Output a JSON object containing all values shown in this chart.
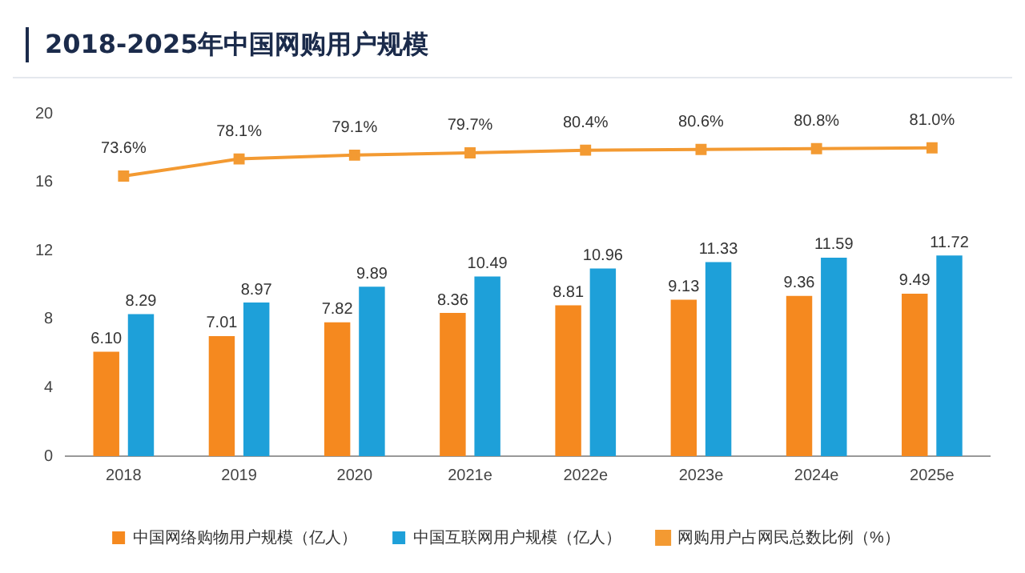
{
  "chart_data": {
    "type": "bar",
    "title": "2018-2025年中国网购用户规模",
    "categories": [
      "2018",
      "2019",
      "2020",
      "2021e",
      "2022e",
      "2023e",
      "2024e",
      "2025e"
    ],
    "series": [
      {
        "name": "中国网络购物用户规模（亿人）",
        "color": "#f5891f",
        "values": [
          6.1,
          7.01,
          7.82,
          8.36,
          8.81,
          9.13,
          9.36,
          9.49
        ],
        "value_labels": [
          "6.10",
          "7.01",
          "7.82",
          "8.36",
          "8.81",
          "9.13",
          "9.36",
          "9.49"
        ]
      },
      {
        "name": "中国互联网用户规模（亿人）",
        "color": "#1ea0d9",
        "values": [
          8.29,
          8.97,
          9.89,
          10.49,
          10.96,
          11.33,
          11.59,
          11.72
        ]
      },
      {
        "name": "网购用户占网民总数比例（%）",
        "type": "line",
        "axis": "y2",
        "color": "#f39a32",
        "values": [
          73.6,
          78.1,
          79.1,
          79.7,
          80.4,
          80.6,
          80.8,
          81.0
        ],
        "value_labels": [
          "73.6%",
          "78.1%",
          "79.1%",
          "79.7%",
          "80.4%",
          "80.6%",
          "80.8%",
          "81.0%"
        ]
      }
    ],
    "ylim": [
      0,
      20
    ],
    "yticks": [
      0,
      4,
      8,
      12,
      16,
      20
    ],
    "data_labels": true,
    "legend": "bottom",
    "marker": "square",
    "grid": false
  }
}
